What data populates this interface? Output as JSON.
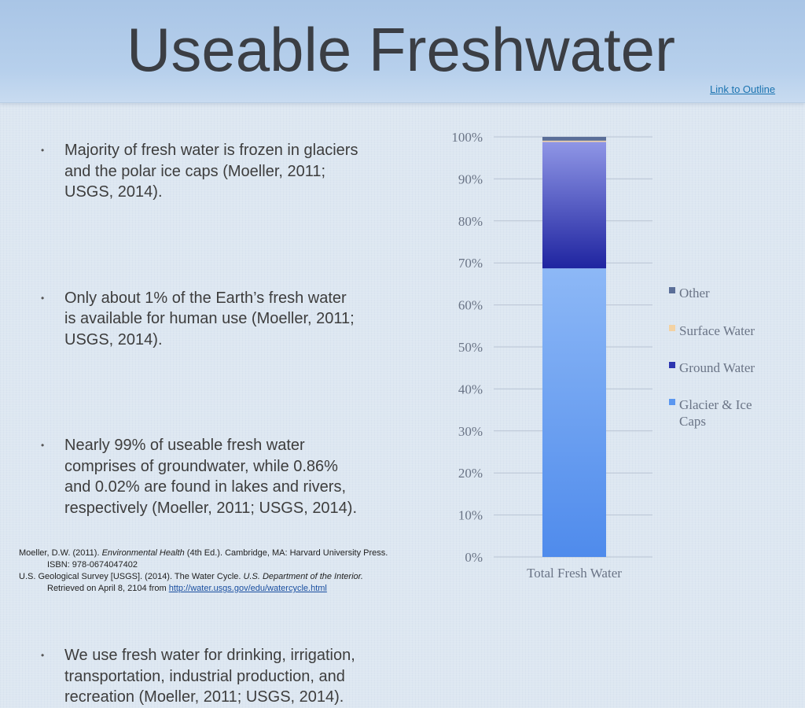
{
  "title": "Useable Freshwater",
  "outline_link": "Link to  Outline",
  "bullets": [
    "Majority of fresh water is frozen in glaciers and the polar ice caps (Moeller, 2011; USGS, 2014).",
    "Only about 1% of the Earth’s fresh water is available for human use (Moeller, 2011; USGS, 2014).",
    "Nearly 99% of useable fresh water comprises of groundwater, while 0.86% and 0.02% are found in lakes and rivers, respectively (Moeller, 2011; USGS, 2014).",
    "We use fresh water for drinking, irrigation, transportation, industrial production, and recreation (Moeller, 2011; USGS, 2014)."
  ],
  "references": {
    "ref1_a": "Moeller, D.W. (2011). ",
    "ref1_title": "Environmental Health",
    "ref1_b": " (4th Ed.). Cambridge, MA: Harvard University Press.",
    "ref1_isbn": "ISBN: 978-0674047402",
    "ref2_a": "U.S. Geological Survey [USGS]. (2014). The Water Cycle. ",
    "ref2_journal": "U.S. Department of the Interior.",
    "ref2_retrieved": "Retrieved on April 8, 2104 from ",
    "ref2_url": "http://water.usgs.gov/edu/watercycle.html"
  },
  "chart_data": {
    "type": "bar",
    "stacked": true,
    "categories": [
      "Total Fresh Water"
    ],
    "series": [
      {
        "name": "Glacier & Ice Caps",
        "values": [
          68.7
        ],
        "color": "#5b97f0"
      },
      {
        "name": "Ground Water",
        "values": [
          30.1
        ],
        "color": "#2d35b0"
      },
      {
        "name": "Surface Water",
        "values": [
          0.3
        ],
        "color": "#f3d2a3"
      },
      {
        "name": "Other",
        "values": [
          0.9
        ],
        "color": "#5a6e98"
      }
    ],
    "ylim": [
      0,
      100
    ],
    "yticks": [
      "0%",
      "10%",
      "20%",
      "30%",
      "40%",
      "50%",
      "60%",
      "70%",
      "80%",
      "90%",
      "100%"
    ],
    "grid": true,
    "legend": "right",
    "legend_order": [
      "Other",
      "Surface Water",
      "Ground Water",
      "Glacier & Ice Caps"
    ]
  }
}
